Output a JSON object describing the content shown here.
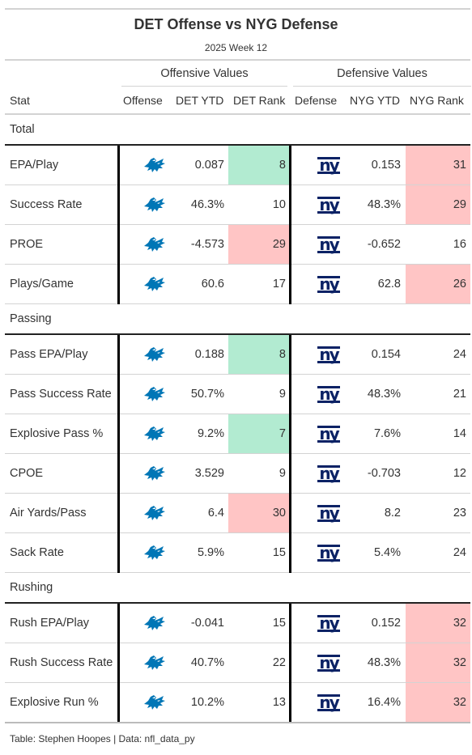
{
  "title": "DET Offense vs NYG Defense",
  "subtitle": "2025 Week 12",
  "spanners": {
    "offense": "Offensive Values",
    "defense": "Defensive Values"
  },
  "columns": {
    "stat": "Stat",
    "offense": "Offense",
    "off_ytd": "DET YTD",
    "off_rank": "DET Rank",
    "defense": "Defense",
    "def_ytd": "NYG YTD",
    "def_rank": "NYG Rank"
  },
  "colors": {
    "good": "#b2ebd1",
    "bad": "#ffc5c5",
    "lions_blue": "#0076b6",
    "giants_blue": "#0b2265"
  },
  "icons": {
    "offense": "detroit-lions-logo-icon",
    "defense": "new-york-giants-logo-icon"
  },
  "footer": "Table: Stephen Hoopes | Data: nfl_data_py",
  "chart_data": {
    "type": "table",
    "groups": [
      {
        "name": "Total",
        "rows": [
          {
            "stat": "EPA/Play",
            "off_ytd": "0.087",
            "off_rank": "8",
            "off_hl": "good",
            "def_ytd": "0.153",
            "def_rank": "31",
            "def_hl": "bad"
          },
          {
            "stat": "Success Rate",
            "off_ytd": "46.3%",
            "off_rank": "10",
            "off_hl": "",
            "def_ytd": "48.3%",
            "def_rank": "29",
            "def_hl": "bad"
          },
          {
            "stat": "PROE",
            "off_ytd": "-4.573",
            "off_rank": "29",
            "off_hl": "bad",
            "def_ytd": "-0.652",
            "def_rank": "16",
            "def_hl": ""
          },
          {
            "stat": "Plays/Game",
            "off_ytd": "60.6",
            "off_rank": "17",
            "off_hl": "",
            "def_ytd": "62.8",
            "def_rank": "26",
            "def_hl": "bad"
          }
        ]
      },
      {
        "name": "Passing",
        "rows": [
          {
            "stat": "Pass EPA/Play",
            "off_ytd": "0.188",
            "off_rank": "8",
            "off_hl": "good",
            "def_ytd": "0.154",
            "def_rank": "24",
            "def_hl": ""
          },
          {
            "stat": "Pass Success Rate",
            "off_ytd": "50.7%",
            "off_rank": "9",
            "off_hl": "",
            "def_ytd": "48.3%",
            "def_rank": "21",
            "def_hl": ""
          },
          {
            "stat": "Explosive Pass %",
            "off_ytd": "9.2%",
            "off_rank": "7",
            "off_hl": "good",
            "def_ytd": "7.6%",
            "def_rank": "14",
            "def_hl": ""
          },
          {
            "stat": "CPOE",
            "off_ytd": "3.529",
            "off_rank": "9",
            "off_hl": "",
            "def_ytd": "-0.703",
            "def_rank": "12",
            "def_hl": ""
          },
          {
            "stat": "Air Yards/Pass",
            "off_ytd": "6.4",
            "off_rank": "30",
            "off_hl": "bad",
            "def_ytd": "8.2",
            "def_rank": "23",
            "def_hl": ""
          },
          {
            "stat": "Sack Rate",
            "off_ytd": "5.9%",
            "off_rank": "15",
            "off_hl": "",
            "def_ytd": "5.4%",
            "def_rank": "24",
            "def_hl": ""
          }
        ]
      },
      {
        "name": "Rushing",
        "rows": [
          {
            "stat": "Rush EPA/Play",
            "off_ytd": "-0.041",
            "off_rank": "15",
            "off_hl": "",
            "def_ytd": "0.152",
            "def_rank": "32",
            "def_hl": "bad"
          },
          {
            "stat": "Rush Success Rate",
            "off_ytd": "40.7%",
            "off_rank": "22",
            "off_hl": "",
            "def_ytd": "48.3%",
            "def_rank": "32",
            "def_hl": "bad"
          },
          {
            "stat": "Explosive Run %",
            "off_ytd": "10.2%",
            "off_rank": "13",
            "off_hl": "",
            "def_ytd": "16.4%",
            "def_rank": "32",
            "def_hl": "bad"
          }
        ]
      }
    ]
  }
}
